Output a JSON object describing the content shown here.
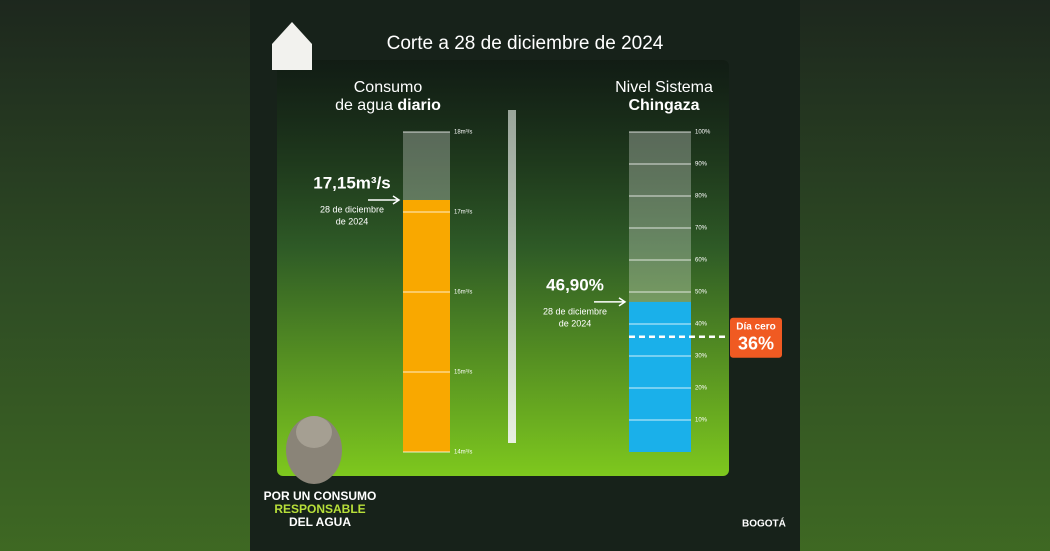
{
  "header": {
    "title": "Corte a 28 de diciembre de 2024"
  },
  "chart_data": [
    {
      "type": "bar",
      "title": {
        "line1": "Consumo",
        "line2": "de agua",
        "bold": "diario"
      },
      "values": [
        17.15
      ],
      "value_labels": [
        "17,15m³/s"
      ],
      "date_lines": [
        "28 de diciembre",
        "de 2024"
      ],
      "color": "#f9a800",
      "ylim": [
        14,
        18
      ],
      "yticks": [
        {
          "value": 14,
          "label": "14m³/s"
        },
        {
          "value": 15,
          "label": "15m³/s"
        },
        {
          "value": 16,
          "label": "16m³/s"
        },
        {
          "value": 17,
          "label": "17m³/s"
        },
        {
          "value": 18,
          "label": "18m³/s"
        }
      ],
      "grid": true
    },
    {
      "type": "bar",
      "title": {
        "line1": "Nivel Sistema",
        "line2": "",
        "bold": "Chingaza"
      },
      "values": [
        46.9
      ],
      "value_labels": [
        "46,90%"
      ],
      "date_lines": [
        "28 de diciembre",
        "de 2024"
      ],
      "color": "#1ab0ea",
      "ylim": [
        0,
        100
      ],
      "yticks": [
        {
          "value": 10,
          "label": "10%"
        },
        {
          "value": 20,
          "label": "20%"
        },
        {
          "value": 30,
          "label": "30%"
        },
        {
          "value": 40,
          "label": "40%"
        },
        {
          "value": 50,
          "label": "50%"
        },
        {
          "value": 60,
          "label": "60%"
        },
        {
          "value": 70,
          "label": "70%"
        },
        {
          "value": 80,
          "label": "80%"
        },
        {
          "value": 90,
          "label": "90%"
        },
        {
          "value": 100,
          "label": "100%"
        }
      ],
      "grid": true,
      "threshold": {
        "label": "Día cero",
        "value": 36,
        "value_label": "36%",
        "color": "#f05a22"
      }
    }
  ],
  "footer": {
    "lines": [
      "POR UN CONSUMO",
      "RESPONSABLE",
      "DEL AGUA"
    ],
    "brand": "BOGOTÁ"
  }
}
